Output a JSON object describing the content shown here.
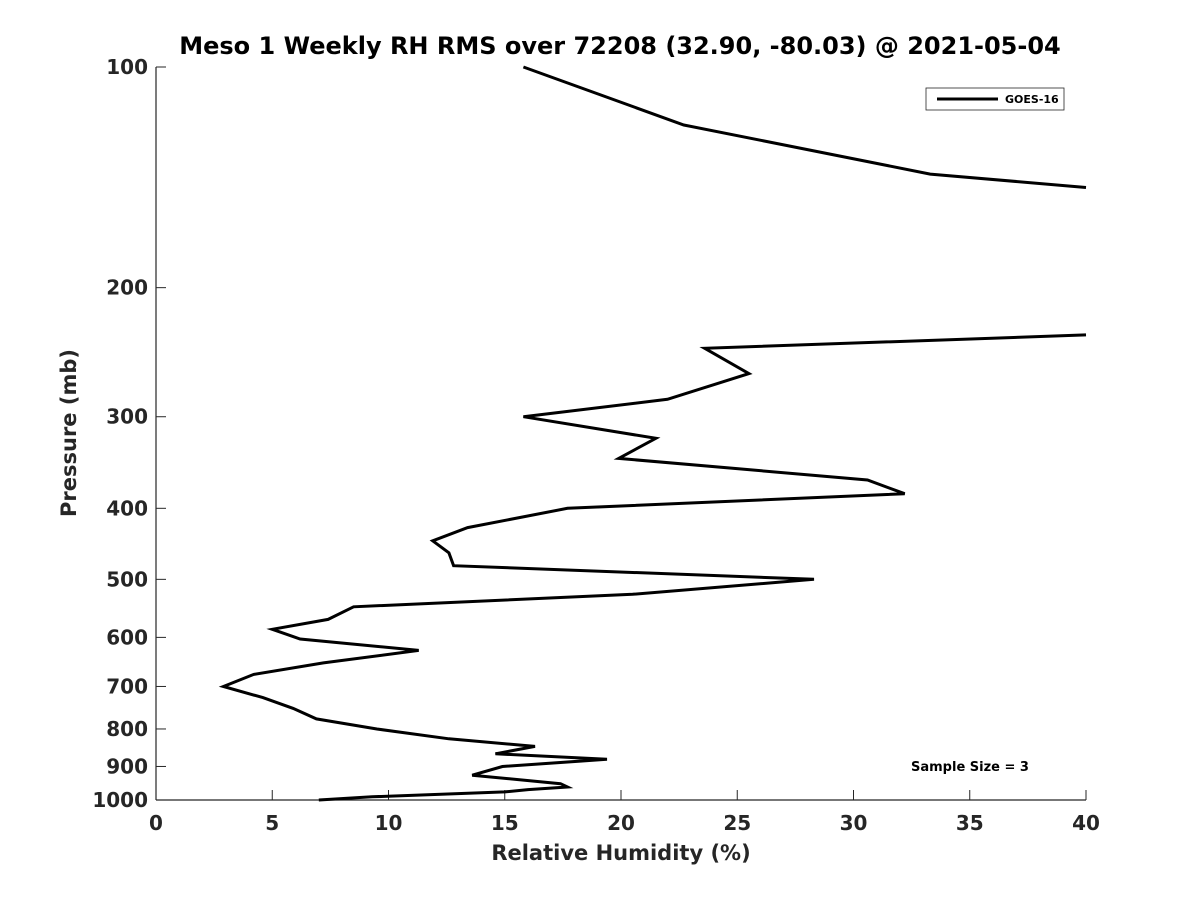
{
  "chart_data": {
    "type": "line",
    "title": "Meso 1 Weekly RH RMS over 72208 (32.90, -80.03) @ 2021-05-04",
    "xlabel": "Relative Humidity (%)",
    "ylabel": "Pressure (mb)",
    "xlim": [
      0,
      40
    ],
    "ylim": [
      100,
      1000
    ],
    "yscale": "log",
    "y_reversed": true,
    "grid": false,
    "x_ticks": [
      0,
      5,
      10,
      15,
      20,
      25,
      30,
      35,
      40
    ],
    "y_ticks": [
      100,
      200,
      300,
      400,
      500,
      600,
      700,
      800,
      900,
      1000
    ],
    "legend": {
      "position": "top-right",
      "entries": [
        "GOES-16"
      ]
    },
    "annotation": "Sample Size = 3",
    "series": [
      {
        "name": "GOES-16",
        "color": "#000000",
        "segments": [
          {
            "x": [
              15.8,
              22.7,
              33.3,
              40.0
            ],
            "y": [
              100,
              120,
              140,
              146
            ]
          },
          {
            "x": [
              40.0,
              23.6,
              25.5,
              22.0,
              15.8,
              21.5,
              19.9,
              30.6,
              32.2,
              17.7,
              13.4,
              11.9,
              12.6,
              12.8,
              28.3,
              20.5,
              8.5,
              7.4,
              5.0,
              6.2,
              11.3,
              7.2,
              4.2,
              2.9,
              4.6,
              5.9,
              6.9,
              9.5,
              12.6,
              16.3,
              14.6,
              19.4,
              14.9,
              13.6,
              17.4,
              17.7,
              16.0,
              15.0,
              9.3,
              7.0
            ],
            "y": [
              232,
              242,
              262,
              284,
              300,
              321,
              342,
              366,
              382,
              400,
              425,
              443,
              460,
              479,
              500,
              524,
              545,
              567,
              585,
              603,
              625,
              650,
              674,
              700,
              725,
              750,
              775,
              800,
              825,
              845,
              865,
              880,
              900,
              925,
              950,
              960,
              968,
              975,
              990,
              1000
            ]
          }
        ]
      }
    ]
  }
}
